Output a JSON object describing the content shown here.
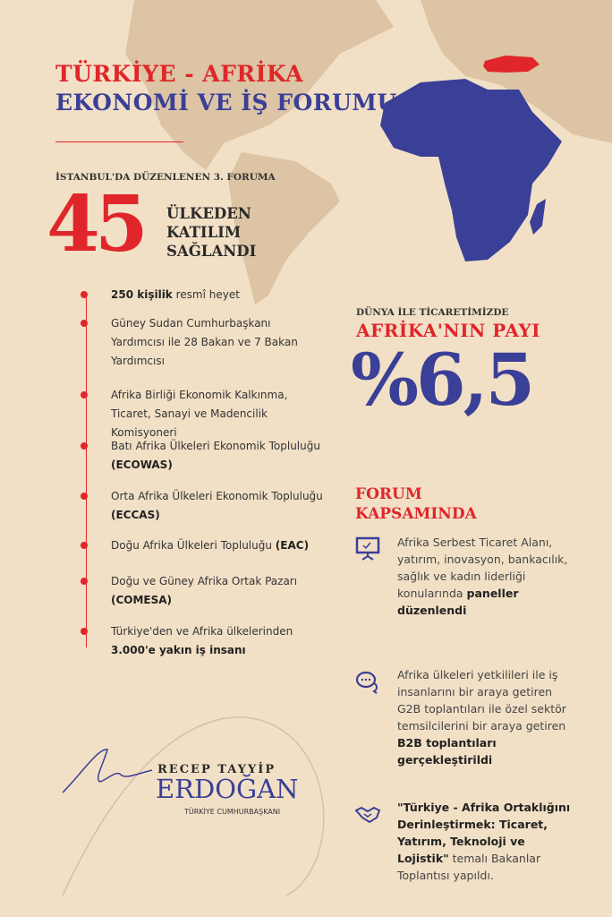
{
  "header": {
    "line1": "TÜRKİYE - AFRİKA",
    "line2": "EKONOMİ VE İŞ FORUMU"
  },
  "stat": {
    "subtitle": "İSTANBUL'DA DÜZENLENEN 3. FORUMA",
    "number": "45",
    "text": [
      "ÜLKEDEN",
      "KATILIM",
      "SAĞLANDI"
    ]
  },
  "participants": [
    [
      {
        "t": "250 kişilik",
        "b": true
      },
      {
        "t": " resmî heyet",
        "b": false
      }
    ],
    [
      {
        "t": "Güney Sudan Cumhurbaşkanı Yardımcısı ile 28 Bakan ve 7 Bakan Yardımcısı",
        "b": false
      }
    ],
    [
      {
        "t": "Afrika Birliği Ekonomik Kalkınma, Ticaret, Sanayi ve Madencilik Komisyoneri",
        "b": false
      }
    ],
    [
      {
        "t": "Batı Afrika Ülkeleri Ekonomik Topluluğu ",
        "b": false
      },
      {
        "t": "(ECOWAS)",
        "b": true
      }
    ],
    [
      {
        "t": "Orta Afrika Ülkeleri Ekonomik Topluluğu ",
        "b": false
      },
      {
        "t": "(ECCAS)",
        "b": true
      }
    ],
    [
      {
        "t": "Doğu Afrika Ülkeleri Topluluğu ",
        "b": false
      },
      {
        "t": "(EAC)",
        "b": true
      }
    ],
    [
      {
        "t": "Doğu ve Güney Afrika Ortak Pazarı ",
        "b": false
      },
      {
        "t": "(COMESA)",
        "b": true
      }
    ],
    [
      {
        "t": "Türkiye'den ve Afrika ülkelerinden ",
        "b": false
      },
      {
        "t": "3.000'e yakın iş insanı",
        "b": true
      }
    ]
  ],
  "trade": {
    "label": "DÜNYA İLE TİCARETİMİZDE",
    "title": "AFRİKA'NIN PAYI",
    "value": "%6,5"
  },
  "forum": {
    "title": [
      "FORUM",
      "KAPSAMINDA"
    ],
    "items": [
      {
        "icon": "presentation-board-icon",
        "segments": [
          {
            "t": "Afrika Serbest Ticaret Alanı, yatırım, inovasyon, bankacılık, sağlık ve kadın liderliği konularında ",
            "b": false
          },
          {
            "t": "paneller düzenlendi",
            "b": true
          }
        ]
      },
      {
        "icon": "chat-bubbles-icon",
        "segments": [
          {
            "t": "Afrika ülkeleri yetkilileri ile iş insanlarını bir araya getiren G2B toplantıları ile özel sektör temsilcilerini bir araya getiren ",
            "b": false
          },
          {
            "t": "B2B toplantıları gerçekleştirildi",
            "b": true
          }
        ]
      },
      {
        "icon": "handshake-icon",
        "segments": [
          {
            "t": "\"Türkiye - Afrika Ortaklığını Derinleştirmek: Ticaret, Yatırım, Teknoloji ve Lojistik\"",
            "b": true
          },
          {
            "t": " temalı Bakanlar Toplantısı yapıldı.",
            "b": false
          }
        ]
      }
    ]
  },
  "signature": {
    "first": "RECEP TAYYİP",
    "last": "ERDOĞAN",
    "title": "TÜRKİYE CUMHURBAŞKANI"
  },
  "colors": {
    "background": "#f2e0c6",
    "red": "#e0262a",
    "blue": "#3a3f97",
    "map": "#dcc4a4"
  }
}
